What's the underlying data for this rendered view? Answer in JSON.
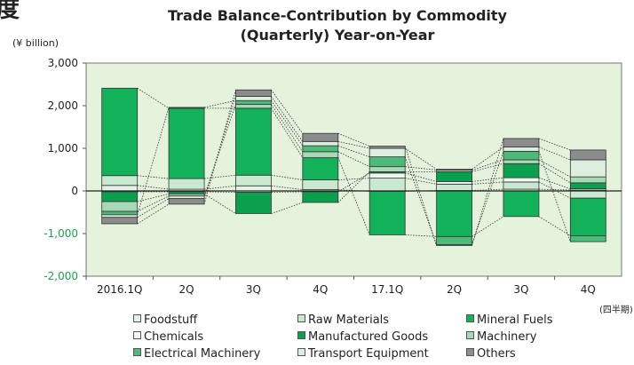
{
  "header": {
    "corner_glyph": "度",
    "title_line1": "Trade Balance-Contribution by Commodity",
    "title_line2": "(Quarterly) Year-on-Year"
  },
  "unit_label": "(¥ billion)",
  "period_note": "(四半期)",
  "chart_data": {
    "type": "bar",
    "stacked": true,
    "connector_lines": true,
    "categories": [
      "2016.1Q",
      "2Q",
      "3Q",
      "4Q",
      "17.1Q",
      "2Q",
      "3Q",
      "4Q"
    ],
    "ylim": [
      -2000,
      3000
    ],
    "yticks": [
      {
        "value": 3000,
        "label": "3,000"
      },
      {
        "value": 2000,
        "label": "2,000"
      },
      {
        "value": 1000,
        "label": "1,000"
      },
      {
        "value": 0,
        "label": "0"
      },
      {
        "value": -1000,
        "label": "-1,000"
      },
      {
        "value": -2000,
        "label": "-2,000"
      }
    ],
    "grid": false,
    "colors": {
      "plot_background": "#e5f2dc",
      "negative_tick_labels": "#1aa34a",
      "positive_tick_labels": "#222222"
    },
    "series": [
      {
        "name": "Foodstuff",
        "color": "#e2f2e6",
        "values": [
          130,
          40,
          120,
          30,
          -10,
          10,
          40,
          20
        ]
      },
      {
        "name": "Raw Materials",
        "color": "#c9e8d0",
        "values": [
          230,
          250,
          250,
          230,
          300,
          150,
          170,
          -170
        ]
      },
      {
        "name": "Mineral Fuels",
        "color": "#13b25a",
        "values": [
          2050,
          1650,
          1570,
          520,
          -1020,
          -1070,
          -600,
          -880
        ]
      },
      {
        "name": "Chemicals",
        "color": "#f1f8f1",
        "values": [
          -20,
          -20,
          -30,
          -20,
          120,
          60,
          100,
          30
        ]
      },
      {
        "name": "Manufactured Goods",
        "color": "#0aa04e",
        "values": [
          -230,
          -50,
          -500,
          -250,
          30,
          230,
          330,
          140
        ]
      },
      {
        "name": "Machinery",
        "color": "#a8d9b6",
        "values": [
          -230,
          -50,
          90,
          140,
          120,
          40,
          90,
          140
        ]
      },
      {
        "name": "Electrical Machinery",
        "color": "#4cba78",
        "values": [
          -80,
          20,
          90,
          140,
          230,
          -190,
          200,
          -140
        ]
      },
      {
        "name": "Transport Equipment",
        "color": "#dcefdf",
        "values": [
          -60,
          -60,
          100,
          100,
          200,
          20,
          100,
          400
        ]
      },
      {
        "name": "Others",
        "color": "#8c8c8c",
        "values": [
          -150,
          -130,
          150,
          190,
          50,
          -20,
          200,
          230
        ]
      }
    ],
    "legend": {
      "placement": "bottom",
      "entries": [
        "Foodstuff",
        "Raw Materials",
        "Mineral Fuels",
        "Chemicals",
        "Manufactured Goods",
        "Machinery",
        "Electrical Machinery",
        "Transport Equipment",
        "Others"
      ]
    }
  }
}
